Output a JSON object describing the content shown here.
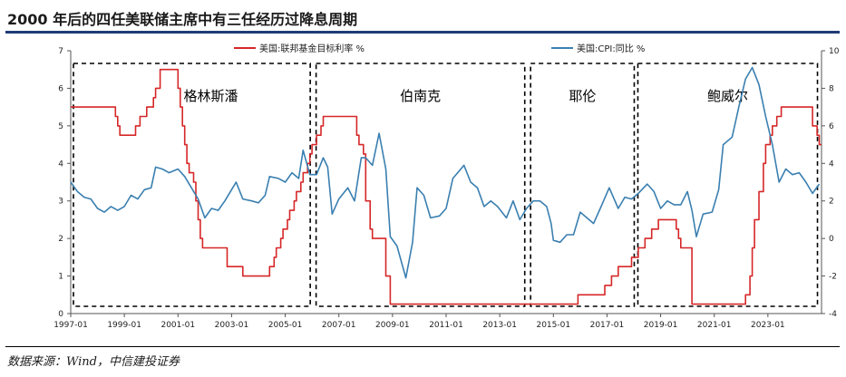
{
  "title": "2000 年后的四任美联储主席中有三任经历过降息周期",
  "source": "数据来源：Wind，中信建投证券",
  "chart_data": {
    "type": "line",
    "x_ticks": [
      "1997-01",
      "1999-01",
      "2001-01",
      "2003-01",
      "2005-01",
      "2007-01",
      "2009-01",
      "2011-01",
      "2013-01",
      "2015-01",
      "2017-01",
      "2019-01",
      "2021-01",
      "2023-01"
    ],
    "y_left": {
      "min": 0,
      "max": 7,
      "ticks": [
        "0",
        "1",
        "2",
        "3",
        "4",
        "5",
        "6",
        "7"
      ]
    },
    "y_right": {
      "min": -4,
      "max": 10,
      "ticks": [
        "-4",
        "-2",
        "0",
        "2",
        "4",
        "6",
        "8",
        "10"
      ]
    },
    "legend_position": "top",
    "grid": false,
    "series": [
      {
        "name": "美国:联邦基金目标利率 %",
        "axis": "left",
        "color": "#d62728",
        "step": true,
        "points": [
          [
            "1997-01",
            5.5
          ],
          [
            "1998-09",
            5.25
          ],
          [
            "1998-10",
            5.0
          ],
          [
            "1998-11",
            4.75
          ],
          [
            "1999-06",
            5.0
          ],
          [
            "1999-08",
            5.25
          ],
          [
            "1999-11",
            5.5
          ],
          [
            "2000-02",
            5.75
          ],
          [
            "2000-03",
            6.0
          ],
          [
            "2000-05",
            6.5
          ],
          [
            "2001-01",
            6.0
          ],
          [
            "2001-02",
            5.5
          ],
          [
            "2001-03",
            5.0
          ],
          [
            "2001-04",
            4.5
          ],
          [
            "2001-05",
            4.0
          ],
          [
            "2001-06",
            3.75
          ],
          [
            "2001-08",
            3.5
          ],
          [
            "2001-09",
            3.0
          ],
          [
            "2001-10",
            2.5
          ],
          [
            "2001-11",
            2.0
          ],
          [
            "2001-12",
            1.75
          ],
          [
            "2002-11",
            1.25
          ],
          [
            "2003-06",
            1.0
          ],
          [
            "2004-06",
            1.25
          ],
          [
            "2004-08",
            1.5
          ],
          [
            "2004-09",
            1.75
          ],
          [
            "2004-11",
            2.0
          ],
          [
            "2004-12",
            2.25
          ],
          [
            "2005-02",
            2.5
          ],
          [
            "2005-03",
            2.75
          ],
          [
            "2005-05",
            3.0
          ],
          [
            "2005-06",
            3.25
          ],
          [
            "2005-08",
            3.5
          ],
          [
            "2005-09",
            3.75
          ],
          [
            "2005-11",
            4.0
          ],
          [
            "2005-12",
            4.25
          ],
          [
            "2006-01",
            4.5
          ],
          [
            "2006-03",
            4.75
          ],
          [
            "2006-05",
            5.0
          ],
          [
            "2006-06",
            5.25
          ],
          [
            "2007-09",
            4.75
          ],
          [
            "2007-10",
            4.5
          ],
          [
            "2007-12",
            4.25
          ],
          [
            "2008-01",
            3.0
          ],
          [
            "2008-03",
            2.25
          ],
          [
            "2008-04",
            2.0
          ],
          [
            "2008-10",
            1.0
          ],
          [
            "2008-12",
            0.25
          ],
          [
            "2015-12",
            0.5
          ],
          [
            "2016-12",
            0.75
          ],
          [
            "2017-03",
            1.0
          ],
          [
            "2017-06",
            1.25
          ],
          [
            "2017-12",
            1.5
          ],
          [
            "2018-03",
            1.75
          ],
          [
            "2018-06",
            2.0
          ],
          [
            "2018-09",
            2.25
          ],
          [
            "2018-12",
            2.5
          ],
          [
            "2019-08",
            2.25
          ],
          [
            "2019-09",
            2.0
          ],
          [
            "2019-10",
            1.75
          ],
          [
            "2020-03",
            0.25
          ],
          [
            "2022-03",
            0.5
          ],
          [
            "2022-05",
            1.0
          ],
          [
            "2022-06",
            1.75
          ],
          [
            "2022-07",
            2.5
          ],
          [
            "2022-09",
            3.25
          ],
          [
            "2022-11",
            4.0
          ],
          [
            "2022-12",
            4.5
          ],
          [
            "2023-02",
            4.75
          ],
          [
            "2023-03",
            5.0
          ],
          [
            "2023-05",
            5.25
          ],
          [
            "2023-07",
            5.5
          ],
          [
            "2024-09",
            5.0
          ],
          [
            "2024-11",
            4.75
          ],
          [
            "2024-12",
            4.5
          ]
        ]
      },
      {
        "name": "美国:CPI:同比 %",
        "axis": "right",
        "color": "#3a7fb0",
        "step": false,
        "points": [
          [
            "1997-01",
            3.0
          ],
          [
            "1997-04",
            2.5
          ],
          [
            "1997-07",
            2.2
          ],
          [
            "1997-10",
            2.1
          ],
          [
            "1998-01",
            1.6
          ],
          [
            "1998-04",
            1.4
          ],
          [
            "1998-07",
            1.7
          ],
          [
            "1998-10",
            1.5
          ],
          [
            "1999-01",
            1.7
          ],
          [
            "1999-04",
            2.3
          ],
          [
            "1999-07",
            2.1
          ],
          [
            "1999-10",
            2.6
          ],
          [
            "2000-01",
            2.7
          ],
          [
            "2000-03",
            3.8
          ],
          [
            "2000-06",
            3.7
          ],
          [
            "2000-09",
            3.5
          ],
          [
            "2001-01",
            3.7
          ],
          [
            "2001-04",
            3.3
          ],
          [
            "2001-07",
            2.7
          ],
          [
            "2001-10",
            2.1
          ],
          [
            "2002-01",
            1.1
          ],
          [
            "2002-04",
            1.6
          ],
          [
            "2002-07",
            1.5
          ],
          [
            "2002-10",
            2.0
          ],
          [
            "2003-01",
            2.6
          ],
          [
            "2003-03",
            3.0
          ],
          [
            "2003-06",
            2.1
          ],
          [
            "2003-10",
            2.0
          ],
          [
            "2004-01",
            1.9
          ],
          [
            "2004-04",
            2.3
          ],
          [
            "2004-06",
            3.3
          ],
          [
            "2004-10",
            3.2
          ],
          [
            "2005-01",
            3.0
          ],
          [
            "2005-04",
            3.5
          ],
          [
            "2005-07",
            3.2
          ],
          [
            "2005-09",
            4.7
          ],
          [
            "2005-12",
            3.4
          ],
          [
            "2006-03",
            3.4
          ],
          [
            "2006-06",
            4.3
          ],
          [
            "2006-08",
            3.8
          ],
          [
            "2006-10",
            1.3
          ],
          [
            "2007-01",
            2.1
          ],
          [
            "2007-05",
            2.7
          ],
          [
            "2007-08",
            2.0
          ],
          [
            "2007-11",
            4.3
          ],
          [
            "2008-01",
            4.3
          ],
          [
            "2008-04",
            3.9
          ],
          [
            "2008-07",
            5.6
          ],
          [
            "2008-10",
            3.7
          ],
          [
            "2008-12",
            0.1
          ],
          [
            "2009-03",
            -0.4
          ],
          [
            "2009-07",
            -2.1
          ],
          [
            "2009-10",
            -0.2
          ],
          [
            "2009-12",
            2.7
          ],
          [
            "2010-03",
            2.3
          ],
          [
            "2010-06",
            1.1
          ],
          [
            "2010-10",
            1.2
          ],
          [
            "2011-01",
            1.6
          ],
          [
            "2011-04",
            3.2
          ],
          [
            "2011-09",
            3.9
          ],
          [
            "2011-12",
            3.0
          ],
          [
            "2012-03",
            2.7
          ],
          [
            "2012-06",
            1.7
          ],
          [
            "2012-09",
            2.0
          ],
          [
            "2012-12",
            1.7
          ],
          [
            "2013-04",
            1.1
          ],
          [
            "2013-07",
            2.0
          ],
          [
            "2013-10",
            1.0
          ],
          [
            "2014-01",
            1.6
          ],
          [
            "2014-04",
            2.0
          ],
          [
            "2014-07",
            2.0
          ],
          [
            "2014-10",
            1.7
          ],
          [
            "2014-12",
            0.8
          ],
          [
            "2015-01",
            -0.1
          ],
          [
            "2015-04",
            -0.2
          ],
          [
            "2015-07",
            0.2
          ],
          [
            "2015-10",
            0.2
          ],
          [
            "2016-01",
            1.4
          ],
          [
            "2016-04",
            1.1
          ],
          [
            "2016-07",
            0.8
          ],
          [
            "2016-10",
            1.6
          ],
          [
            "2017-02",
            2.7
          ],
          [
            "2017-06",
            1.6
          ],
          [
            "2017-09",
            2.2
          ],
          [
            "2017-12",
            2.1
          ],
          [
            "2018-03",
            2.4
          ],
          [
            "2018-07",
            2.9
          ],
          [
            "2018-10",
            2.5
          ],
          [
            "2018-12",
            1.9
          ],
          [
            "2019-01",
            1.6
          ],
          [
            "2019-04",
            2.0
          ],
          [
            "2019-07",
            1.8
          ],
          [
            "2019-10",
            1.8
          ],
          [
            "2020-01",
            2.5
          ],
          [
            "2020-03",
            1.5
          ],
          [
            "2020-05",
            0.1
          ],
          [
            "2020-08",
            1.3
          ],
          [
            "2020-12",
            1.4
          ],
          [
            "2021-03",
            2.6
          ],
          [
            "2021-05",
            5.0
          ],
          [
            "2021-09",
            5.4
          ],
          [
            "2021-12",
            7.0
          ],
          [
            "2022-03",
            8.5
          ],
          [
            "2022-06",
            9.1
          ],
          [
            "2022-09",
            8.2
          ],
          [
            "2022-12",
            6.5
          ],
          [
            "2023-03",
            5.0
          ],
          [
            "2023-06",
            3.0
          ],
          [
            "2023-09",
            3.7
          ],
          [
            "2023-12",
            3.4
          ],
          [
            "2024-03",
            3.5
          ],
          [
            "2024-06",
            3.0
          ],
          [
            "2024-09",
            2.4
          ],
          [
            "2024-12",
            2.9
          ]
        ]
      }
    ],
    "annotations": [
      {
        "label": "格林斯潘",
        "start": "1997-01",
        "end": "2006-01"
      },
      {
        "label": "伯南克",
        "start": "2006-02",
        "end": "2014-01"
      },
      {
        "label": "耶伦",
        "start": "2014-02",
        "end": "2018-02"
      },
      {
        "label": "鲍威尔",
        "start": "2018-02",
        "end": "2024-12"
      }
    ]
  }
}
